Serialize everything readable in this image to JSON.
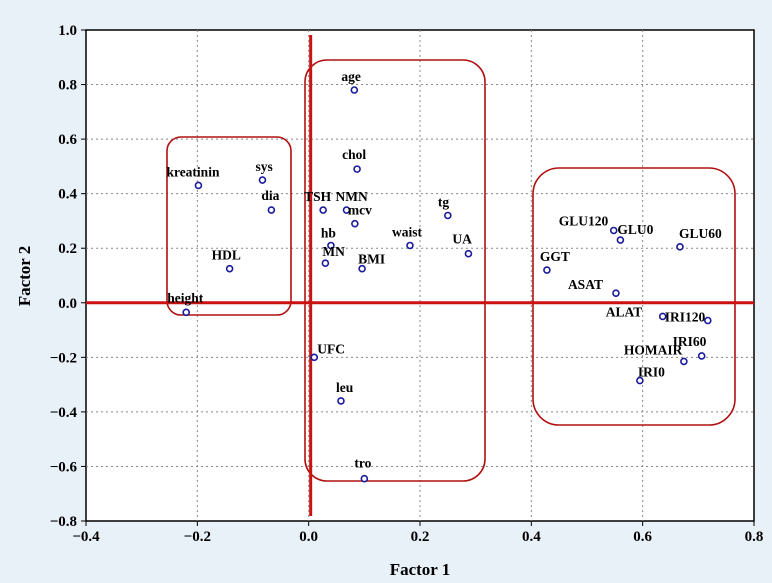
{
  "chart_data": {
    "type": "scatter",
    "xlabel": "Factor  1",
    "ylabel": "Factor  2",
    "xlim": [
      -0.4,
      0.8
    ],
    "ylim": [
      -0.8,
      1.0
    ],
    "xticks": [
      -0.4,
      -0.2,
      0.0,
      0.2,
      0.4,
      0.6,
      0.8
    ],
    "yticks": [
      -0.8,
      -0.6,
      -0.4,
      -0.2,
      0.0,
      0.2,
      0.4,
      0.6,
      0.8,
      1.0
    ],
    "xtick_labels": [
      "−0.4",
      "−0.2",
      "0.0",
      "0.2",
      "0.4",
      "0.6",
      "0.8"
    ],
    "ytick_labels": [
      "−0.8",
      "−0.6",
      "−0.4",
      "−0.2",
      "0.0",
      "0.2",
      "0.4",
      "0.6",
      "0.8",
      "1.0"
    ],
    "grid": true,
    "point_color": "#1a1a9c",
    "reference_line_color": "#cc1111",
    "group_outline_color": "#b01010",
    "points": [
      {
        "label": "age",
        "x": 0.082,
        "y": 0.78
      },
      {
        "label": "chol",
        "x": 0.087,
        "y": 0.49
      },
      {
        "label": "kreatinin",
        "x": -0.198,
        "y": 0.43
      },
      {
        "label": "sys",
        "x": -0.083,
        "y": 0.45
      },
      {
        "label": "dia",
        "x": -0.067,
        "y": 0.34
      },
      {
        "label": "TSH",
        "x": 0.026,
        "y": 0.34
      },
      {
        "label": "NMN",
        "x": 0.068,
        "y": 0.34
      },
      {
        "label": "mcv",
        "x": 0.083,
        "y": 0.29
      },
      {
        "label": "hb",
        "x": 0.04,
        "y": 0.21
      },
      {
        "label": "MN",
        "x": 0.03,
        "y": 0.145
      },
      {
        "label": "BMI",
        "x": 0.096,
        "y": 0.125
      },
      {
        "label": "waist",
        "x": 0.182,
        "y": 0.21
      },
      {
        "label": "tg",
        "x": 0.25,
        "y": 0.32
      },
      {
        "label": "UA",
        "x": 0.287,
        "y": 0.18
      },
      {
        "label": "HDL",
        "x": -0.142,
        "y": 0.125
      },
      {
        "label": "height",
        "x": -0.22,
        "y": -0.035
      },
      {
        "label": "UFC",
        "x": 0.01,
        "y": -0.2
      },
      {
        "label": "leu",
        "x": 0.058,
        "y": -0.36
      },
      {
        "label": "tro",
        "x": 0.1,
        "y": -0.645
      },
      {
        "label": "GLU120",
        "x": 0.548,
        "y": 0.265
      },
      {
        "label": "GLU0",
        "x": 0.56,
        "y": 0.23
      },
      {
        "label": "GLU60",
        "x": 0.667,
        "y": 0.205
      },
      {
        "label": "GGT",
        "x": 0.428,
        "y": 0.12
      },
      {
        "label": "ASAT",
        "x": 0.552,
        "y": 0.035
      },
      {
        "label": "ALAT",
        "x": 0.636,
        "y": -0.05
      },
      {
        "label": "IRI120",
        "x": 0.717,
        "y": -0.065
      },
      {
        "label": "IRI60",
        "x": 0.706,
        "y": -0.195
      },
      {
        "label": "HOMAIR",
        "x": 0.674,
        "y": -0.215
      },
      {
        "label": "IRI0",
        "x": 0.595,
        "y": -0.285
      }
    ]
  }
}
